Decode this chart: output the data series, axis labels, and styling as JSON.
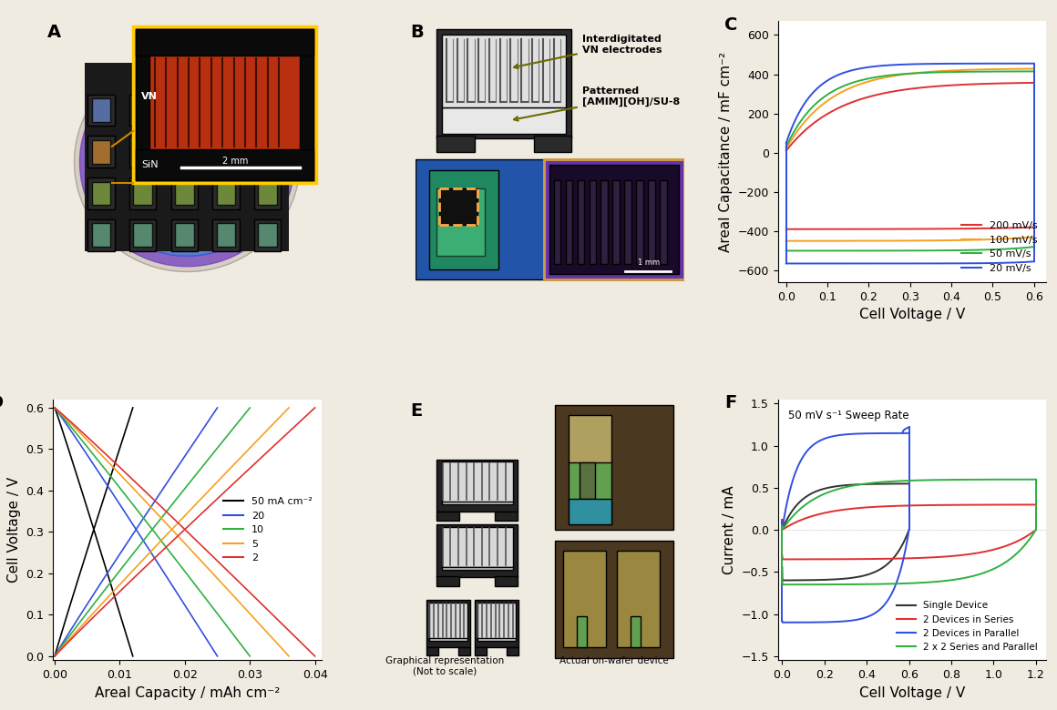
{
  "panel_labels": [
    "A",
    "B",
    "C",
    "D",
    "E",
    "F"
  ],
  "panel_label_fontsize": 14,
  "panel_label_fontweight": "bold",
  "C_xlabel": "Cell Voltage / V",
  "C_ylabel": "Areal Capacitance / mF cm⁻²",
  "C_xlim": [
    -0.02,
    0.63
  ],
  "C_ylim": [
    -660,
    670
  ],
  "C_yticks": [
    -600,
    -400,
    -200,
    0,
    200,
    400,
    600
  ],
  "C_xticks": [
    0.0,
    0.1,
    0.2,
    0.3,
    0.4,
    0.5,
    0.6
  ],
  "C_legend": [
    "200 mV/s",
    "100 mV/s",
    "50 mV/s",
    "20 mV/s"
  ],
  "C_colors": [
    "#e03030",
    "#f5a020",
    "#30b040",
    "#3050e0"
  ],
  "C_linewidth": 1.4,
  "D_xlabel": "Areal Capacity / mAh cm⁻²",
  "D_ylabel": "Cell Voltage / V",
  "D_xlim": [
    -0.0003,
    0.041
  ],
  "D_ylim": [
    -0.01,
    0.62
  ],
  "D_yticks": [
    0.0,
    0.1,
    0.2,
    0.3,
    0.4,
    0.5,
    0.6
  ],
  "D_xticks": [
    0.0,
    0.01,
    0.02,
    0.03,
    0.04
  ],
  "D_legend": [
    "50 mA cm⁻²",
    "20",
    "10",
    "5",
    "2"
  ],
  "D_colors": [
    "#000000",
    "#3050e0",
    "#30b040",
    "#f5a020",
    "#e03030"
  ],
  "D_linewidth": 1.2,
  "F_xlabel": "Cell Voltage / V",
  "F_ylabel": "Current / mA",
  "F_xlim": [
    -0.02,
    1.25
  ],
  "F_ylim": [
    -1.55,
    1.55
  ],
  "F_yticks": [
    -1.5,
    -1.0,
    -0.5,
    0.0,
    0.5,
    1.0,
    1.5
  ],
  "F_xticks": [
    0.0,
    0.2,
    0.4,
    0.6,
    0.8,
    1.0,
    1.2
  ],
  "F_legend": [
    "Single Device",
    "2 Devices in Series",
    "2 Devices in Parallel",
    "2 x 2 Series and Parallel"
  ],
  "F_colors": [
    "#333333",
    "#e03030",
    "#3050e0",
    "#30b040"
  ],
  "F_annotation": "50 mV s⁻¹ Sweep Rate",
  "F_linewidth": 1.4,
  "background_color": "#f0ebe0",
  "plot_bg": "#ffffff",
  "tick_labelsize": 9,
  "axis_labelsize": 11
}
